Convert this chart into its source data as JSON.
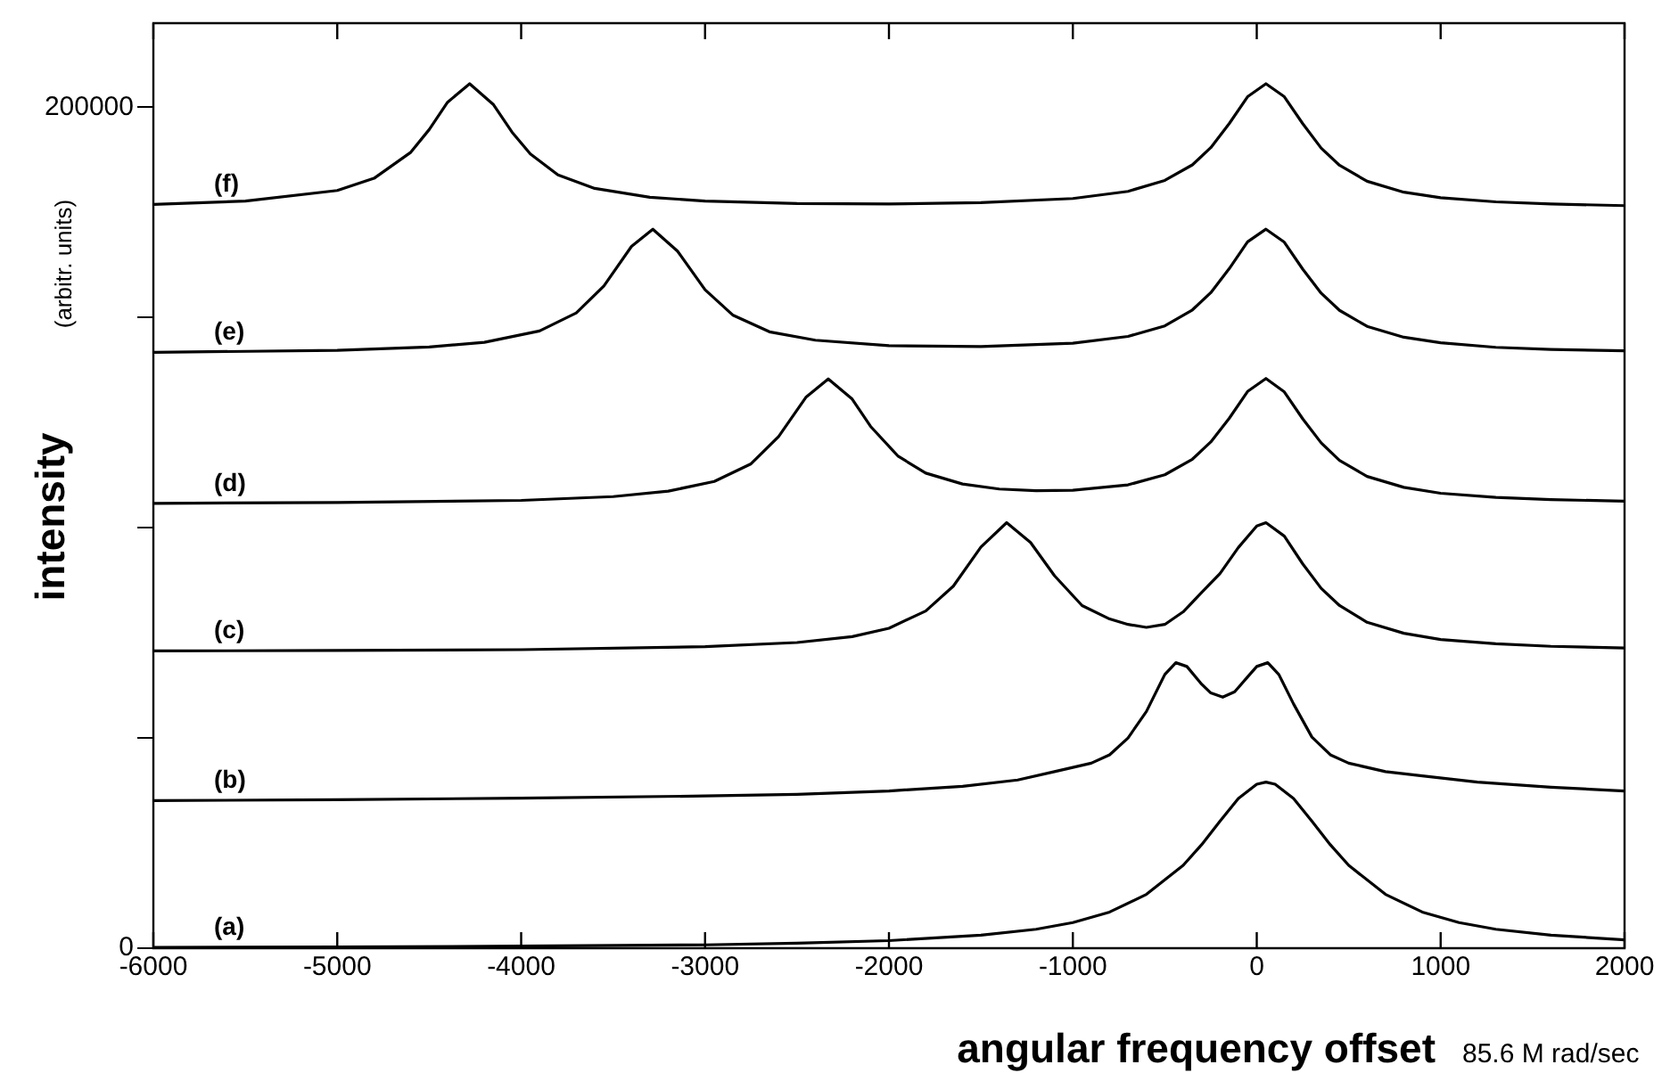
{
  "chart_data": {
    "type": "line",
    "xlabel": "angular frequency offset",
    "ylabel": "intensity",
    "annotations": [
      "85.6 M rad/sec",
      "(arbitr. units)"
    ],
    "xlim": [
      -6000,
      2000
    ],
    "xticks": [
      -6000,
      -5000,
      -4000,
      -3000,
      -2000,
      -1000,
      0,
      1000,
      2000
    ],
    "ylim": [
      0,
      220000
    ],
    "yticks": [
      0,
      {
        "value": 50000,
        "label": null
      },
      {
        "value": 100000,
        "label": null
      },
      {
        "value": 150000,
        "label": null
      },
      200000
    ],
    "marker": "none",
    "line_style": "solid",
    "series": [
      {
        "name": "(a)",
        "color": "#000000",
        "x": [
          -6000,
          -5000,
          -4000,
          -3000,
          -2500,
          -2000,
          -1500,
          -1200,
          -1000,
          -800,
          -600,
          -400,
          -300,
          -200,
          -100,
          0,
          50,
          100,
          200,
          300,
          400,
          500,
          700,
          900,
          1100,
          1300,
          1600,
          2000
        ],
        "values": [
          200,
          300,
          500,
          800,
          1200,
          1800,
          3100,
          4500,
          6100,
          8600,
          12800,
          19700,
          24600,
          30200,
          35600,
          39000,
          39500,
          39000,
          35600,
          30200,
          24600,
          19700,
          12800,
          8600,
          6100,
          4500,
          3100,
          2000
        ]
      },
      {
        "name": "(b)",
        "color": "#000000",
        "x": [
          -6000,
          -5000,
          -4000,
          -3000,
          -2500,
          -2000,
          -1600,
          -1300,
          -1100,
          -900,
          -800,
          -700,
          -600,
          -500,
          -440,
          -380,
          -300,
          -250,
          -185,
          -120,
          -50,
          0,
          60,
          120,
          200,
          300,
          400,
          500,
          700,
          900,
          1200,
          1600,
          2000
        ],
        "values": [
          35100,
          35300,
          35700,
          36200,
          36600,
          37400,
          38500,
          40000,
          42000,
          44000,
          46000,
          50000,
          56300,
          65100,
          67900,
          67000,
          62800,
          60700,
          59700,
          61000,
          64500,
          67000,
          67900,
          65100,
          58100,
          50200,
          46000,
          44000,
          42000,
          41000,
          39500,
          38300,
          37400
        ]
      },
      {
        "name": "(c)",
        "color": "#000000",
        "x": [
          -6000,
          -5000,
          -4000,
          -3000,
          -2500,
          -2200,
          -2000,
          -1800,
          -1650,
          -1500,
          -1360,
          -1230,
          -1100,
          -950,
          -800,
          -700,
          -600,
          -500,
          -400,
          -300,
          -200,
          -100,
          0,
          50,
          150,
          250,
          350,
          450,
          600,
          800,
          1000,
          1300,
          1600,
          2000
        ],
        "values": [
          70700,
          70800,
          71000,
          71700,
          72700,
          74100,
          76100,
          80200,
          86100,
          95400,
          101200,
          96500,
          88600,
          81500,
          78300,
          77000,
          76300,
          77000,
          80000,
          84600,
          89100,
          95300,
          100400,
          101200,
          98000,
          91400,
          85600,
          81500,
          77500,
          74900,
          73400,
          72400,
          71800,
          71400
        ]
      },
      {
        "name": "(d)",
        "color": "#000000",
        "x": [
          -6000,
          -5000,
          -4000,
          -3500,
          -3200,
          -2950,
          -2750,
          -2600,
          -2450,
          -2330,
          -2200,
          -2100,
          -1950,
          -1800,
          -1600,
          -1400,
          -1200,
          -1000,
          -700,
          -500,
          -350,
          -250,
          -150,
          -50,
          50,
          150,
          250,
          350,
          450,
          600,
          800,
          1000,
          1300,
          1600,
          2000
        ],
        "values": [
          105800,
          106000,
          106500,
          107400,
          108700,
          111000,
          115200,
          121700,
          131100,
          135400,
          130600,
          124100,
          117000,
          113000,
          110400,
          109200,
          108800,
          108900,
          110200,
          112600,
          116300,
          120400,
          126000,
          132400,
          135500,
          132300,
          125900,
          120200,
          116000,
          112200,
          109600,
          108200,
          107200,
          106700,
          106300
        ]
      },
      {
        "name": "(e)",
        "color": "#000000",
        "x": [
          -6000,
          -5000,
          -4500,
          -4200,
          -3900,
          -3700,
          -3550,
          -3400,
          -3284,
          -3150,
          -3000,
          -2850,
          -2650,
          -2400,
          -2000,
          -1500,
          -1000,
          -700,
          -500,
          -350,
          -250,
          -150,
          -50,
          50,
          150,
          250,
          350,
          450,
          600,
          800,
          1000,
          1300,
          1600,
          2000
        ],
        "values": [
          141700,
          142200,
          143000,
          144100,
          146800,
          151100,
          157500,
          166900,
          171000,
          165800,
          156600,
          150600,
          146600,
          144600,
          143300,
          143100,
          143900,
          145500,
          148000,
          151800,
          155900,
          161600,
          168000,
          171000,
          167900,
          161500,
          155800,
          151700,
          147900,
          145300,
          144000,
          142900,
          142400,
          142100
        ]
      },
      {
        "name": "(f)",
        "color": "#000000",
        "x": [
          -6000,
          -5500,
          -5000,
          -4800,
          -4600,
          -4500,
          -4400,
          -4280,
          -4150,
          -4050,
          -3950,
          -3800,
          -3600,
          -3300,
          -3000,
          -2500,
          -2000,
          -1500,
          -1000,
          -700,
          -500,
          -350,
          -250,
          -150,
          -50,
          50,
          150,
          250,
          350,
          450,
          600,
          800,
          1000,
          1300,
          1600,
          2000
        ],
        "values": [
          176900,
          177700,
          180200,
          183100,
          189300,
          194700,
          201200,
          205600,
          200600,
          194100,
          188900,
          183900,
          180700,
          178600,
          177700,
          177100,
          177000,
          177300,
          178300,
          180000,
          182600,
          186300,
          190400,
          196100,
          202500,
          205600,
          202500,
          196100,
          190300,
          186200,
          182400,
          179800,
          178500,
          177500,
          177000,
          176600
        ]
      }
    ]
  }
}
